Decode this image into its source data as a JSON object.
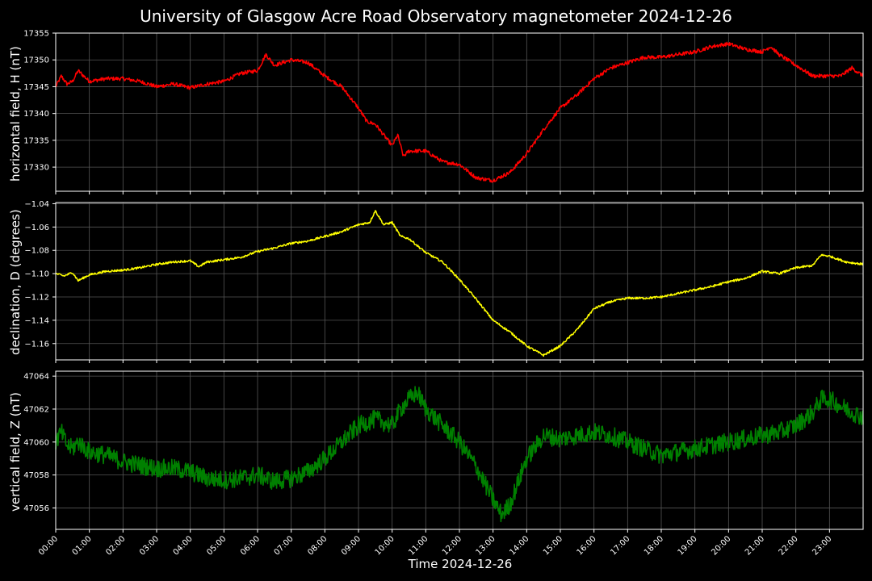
{
  "chart_data": {
    "type": "line",
    "title": "University of Glasgow Acre Road Observatory magnetometer 2024-12-26",
    "xlabel": "Time 2024-12-26",
    "x_ticks": [
      "00:00",
      "01:00",
      "02:00",
      "03:00",
      "04:00",
      "05:00",
      "06:00",
      "07:00",
      "08:00",
      "09:00",
      "10:00",
      "11:00",
      "12:00",
      "13:00",
      "14:00",
      "15:00",
      "16:00",
      "17:00",
      "18:00",
      "19:00",
      "20:00",
      "21:00",
      "22:00",
      "23:00"
    ],
    "xlim": [
      "00:00",
      "24:00"
    ],
    "grid": true,
    "panels": [
      {
        "ylabel": "horizontal field, H (nT)",
        "color": "#ff0000",
        "ylim": [
          17325.5,
          17355
        ],
        "y_ticks": [
          "17355",
          "17350",
          "17345",
          "17340",
          "17335",
          "17330"
        ],
        "tick_values": [
          17355,
          17350,
          17345,
          17340,
          17335,
          17330
        ],
        "x": [
          "00:00",
          "00:10",
          "00:20",
          "00:30",
          "00:40",
          "01:00",
          "01:30",
          "02:00",
          "02:30",
          "03:00",
          "03:30",
          "04:00",
          "04:30",
          "05:00",
          "05:30",
          "06:00",
          "06:15",
          "06:30",
          "07:00",
          "07:30",
          "08:00",
          "08:30",
          "09:00",
          "09:15",
          "09:30",
          "09:45",
          "10:00",
          "10:10",
          "10:20",
          "10:30",
          "11:00",
          "11:30",
          "12:00",
          "12:30",
          "13:00",
          "13:30",
          "14:00",
          "14:30",
          "15:00",
          "15:30",
          "16:00",
          "16:30",
          "17:00",
          "17:30",
          "18:00",
          "18:30",
          "19:00",
          "19:30",
          "20:00",
          "20:30",
          "21:00",
          "21:15",
          "21:30",
          "22:00",
          "22:30",
          "23:00",
          "23:20",
          "23:40",
          "24:00"
        ],
        "values": [
          17345,
          17347,
          17345.5,
          17346,
          17348,
          17346,
          17346.5,
          17346.5,
          17346,
          17345,
          17345.5,
          17344.8,
          17345.5,
          17346,
          17347.5,
          17348,
          17351,
          17349,
          17350,
          17349.5,
          17347,
          17345,
          17341,
          17338.5,
          17338,
          17336,
          17334,
          17336,
          17332,
          17333,
          17333,
          17331,
          17330.5,
          17328,
          17327.5,
          17329,
          17332.5,
          17337,
          17341,
          17343.5,
          17346.5,
          17348.5,
          17349.5,
          17350.5,
          17350.5,
          17351,
          17351.5,
          17352.5,
          17353,
          17352,
          17351.5,
          17352.5,
          17351,
          17349,
          17347,
          17347,
          17347,
          17348.5,
          17347
        ]
      },
      {
        "ylabel": "declination, D (degrees)",
        "color": "#ffff00",
        "ylim": [
          -1.174,
          -1.039
        ],
        "y_ticks": [
          "−1.04",
          "−1.06",
          "−1.08",
          "−1.10",
          "−1.12",
          "−1.14",
          "−1.16"
        ],
        "tick_values": [
          -1.04,
          -1.06,
          -1.08,
          -1.1,
          -1.12,
          -1.14,
          -1.16
        ],
        "x": [
          "00:00",
          "00:15",
          "00:30",
          "00:40",
          "01:00",
          "01:30",
          "02:00",
          "02:30",
          "03:00",
          "03:30",
          "04:00",
          "04:15",
          "04:30",
          "05:00",
          "05:30",
          "06:00",
          "06:30",
          "07:00",
          "07:30",
          "08:00",
          "08:30",
          "09:00",
          "09:20",
          "09:30",
          "09:45",
          "10:00",
          "10:15",
          "10:30",
          "11:00",
          "11:30",
          "12:00",
          "12:30",
          "13:00",
          "13:30",
          "14:00",
          "14:30",
          "15:00",
          "15:30",
          "16:00",
          "16:30",
          "17:00",
          "17:30",
          "18:00",
          "18:30",
          "19:00",
          "19:30",
          "20:00",
          "20:30",
          "21:00",
          "21:30",
          "22:00",
          "22:30",
          "22:45",
          "23:00",
          "23:30",
          "24:00"
        ],
        "values": [
          -1.1,
          -1.102,
          -1.099,
          -1.106,
          -1.101,
          -1.098,
          -1.097,
          -1.095,
          -1.092,
          -1.09,
          -1.089,
          -1.094,
          -1.09,
          -1.088,
          -1.086,
          -1.081,
          -1.078,
          -1.074,
          -1.072,
          -1.068,
          -1.064,
          -1.058,
          -1.056,
          -1.046,
          -1.058,
          -1.056,
          -1.068,
          -1.07,
          -1.082,
          -1.09,
          -1.105,
          -1.122,
          -1.14,
          -1.15,
          -1.162,
          -1.17,
          -1.162,
          -1.148,
          -1.13,
          -1.124,
          -1.121,
          -1.121,
          -1.12,
          -1.117,
          -1.114,
          -1.111,
          -1.107,
          -1.104,
          -1.098,
          -1.1,
          -1.095,
          -1.093,
          -1.084,
          -1.085,
          -1.09,
          -1.092
        ]
      },
      {
        "ylabel": "vertical field, Z (nT)",
        "color": "#008000",
        "ylim": [
          47054.7,
          47064.3
        ],
        "y_ticks": [
          "47064",
          "47062",
          "47060",
          "47058",
          "47056"
        ],
        "tick_values": [
          47064,
          47062,
          47060,
          47058,
          47056
        ],
        "x": [
          "00:00",
          "00:10",
          "00:20",
          "00:30",
          "00:40",
          "01:00",
          "01:30",
          "02:00",
          "02:30",
          "03:00",
          "03:30",
          "04:00",
          "04:30",
          "05:00",
          "05:30",
          "06:00",
          "06:30",
          "07:00",
          "07:30",
          "08:00",
          "08:30",
          "09:00",
          "09:30",
          "10:00",
          "10:15",
          "10:30",
          "10:45",
          "11:00",
          "11:30",
          "12:00",
          "12:30",
          "13:00",
          "13:15",
          "13:30",
          "14:00",
          "14:30",
          "15:00",
          "15:30",
          "16:00",
          "16:30",
          "17:00",
          "17:30",
          "18:00",
          "18:30",
          "19:00",
          "19:30",
          "20:00",
          "20:30",
          "21:00",
          "21:30",
          "22:00",
          "22:30",
          "22:45",
          "23:00",
          "23:30",
          "24:00"
        ],
        "values": [
          47060,
          47060.6,
          47059.8,
          47059.6,
          47060,
          47059.4,
          47059.2,
          47058.8,
          47058.6,
          47058.4,
          47058.4,
          47058.2,
          47057.8,
          47057.7,
          47057.8,
          47058,
          47057.6,
          47057.8,
          47058.2,
          47059,
          47060,
          47061,
          47061.4,
          47061,
          47062,
          47062.6,
          47063,
          47062,
          47061,
          47060,
          47058.5,
          47056.5,
          47055.6,
          47056.2,
          47059,
          47060.4,
          47060.2,
          47060.4,
          47060.6,
          47060.4,
          47060,
          47059.6,
          47059.2,
          47059.4,
          47059.6,
          47059.8,
          47060,
          47060.2,
          47060.4,
          47060.6,
          47061,
          47061.8,
          47062.6,
          47062.6,
          47062,
          47061.5
        ]
      }
    ]
  }
}
